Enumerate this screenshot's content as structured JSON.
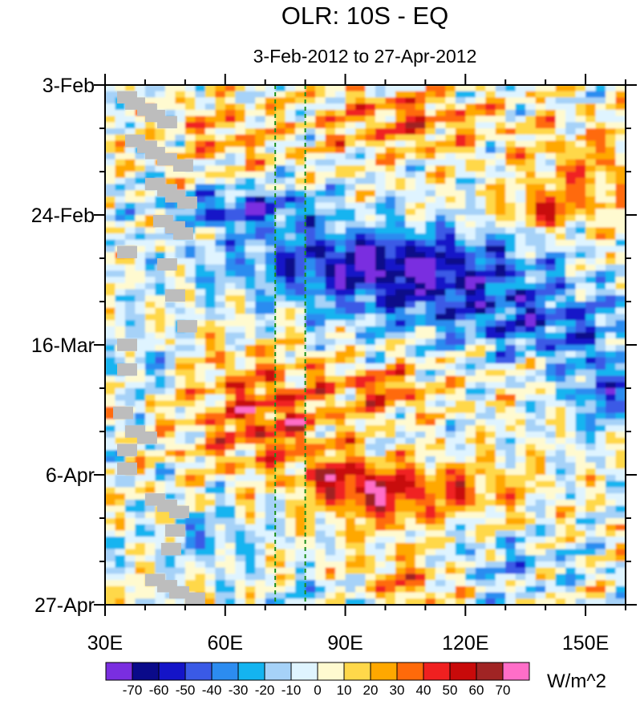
{
  "chart_data": {
    "type": "heatmap",
    "title": "OLR: 10S - EQ",
    "subtitle": "3-Feb-2012 to 27-Apr-2012",
    "x_axis": {
      "label": "",
      "range": [
        30,
        160
      ],
      "ticks": [
        30,
        60,
        90,
        120,
        150
      ],
      "tick_labels": [
        "30E",
        "60E",
        "90E",
        "120E",
        "150E"
      ],
      "minor_step": 10
    },
    "y_axis": {
      "label": "",
      "range_days": [
        0,
        84
      ],
      "ticks": [
        0,
        21,
        42,
        63,
        84
      ],
      "tick_labels": [
        "3-Feb",
        "24-Feb",
        "16-Mar",
        "6-Apr",
        "27-Apr"
      ],
      "minor_step": 7,
      "direction": "time increases downward"
    },
    "reference_lines": [
      {
        "lon": 72.5,
        "style": "dashed",
        "color": "#1a8f1a"
      },
      {
        "lon": 80,
        "style": "dashed",
        "color": "#1a8f1a"
      }
    ],
    "colorbar": {
      "unit_label": "W/m^2",
      "levels": [
        -70,
        -60,
        -50,
        -40,
        -30,
        -20,
        -10,
        0,
        10,
        20,
        30,
        40,
        50,
        60,
        70
      ],
      "level_labels": [
        "-70",
        "-60",
        "-50",
        "-40",
        "-30",
        "-20",
        "-10",
        "0",
        "10",
        "20",
        "30",
        "40",
        "50",
        "60",
        "70"
      ],
      "colors": [
        "#7a2ee0",
        "#0a0a8a",
        "#1414c8",
        "#3a5ae6",
        "#2c8cf0",
        "#14b4f0",
        "#a6d2f8",
        "#dff4ff",
        "#fffad0",
        "#ffd84a",
        "#ffa800",
        "#ff6a0a",
        "#f02020",
        "#c80a0a",
        "#a02424",
        "#ff6ec8"
      ]
    },
    "anomaly_regions": [
      {
        "label": "dry",
        "day_range": [
          0,
          12
        ],
        "lon_range": [
          85,
          130
        ],
        "value": 35
      },
      {
        "label": "wet",
        "day_range": [
          15,
          42
        ],
        "lon_range": [
          40,
          160
        ],
        "value": -45
      },
      {
        "label": "wet_strong",
        "day_range": [
          18,
          23
        ],
        "lon_range": [
          45,
          80
        ],
        "value": -62
      },
      {
        "label": "dry",
        "day_range": [
          43,
          60
        ],
        "lon_range": [
          50,
          110
        ],
        "value": 30
      },
      {
        "label": "dry",
        "day_range": [
          62,
          72
        ],
        "lon_range": [
          80,
          140
        ],
        "value": 40
      },
      {
        "label": "wet",
        "day_range": [
          48,
          58
        ],
        "lon_range": [
          140,
          160
        ],
        "value": -40
      },
      {
        "label": "missing",
        "day_range": [
          0,
          84
        ],
        "lon_range": [
          30,
          50
        ],
        "value": null
      }
    ]
  }
}
